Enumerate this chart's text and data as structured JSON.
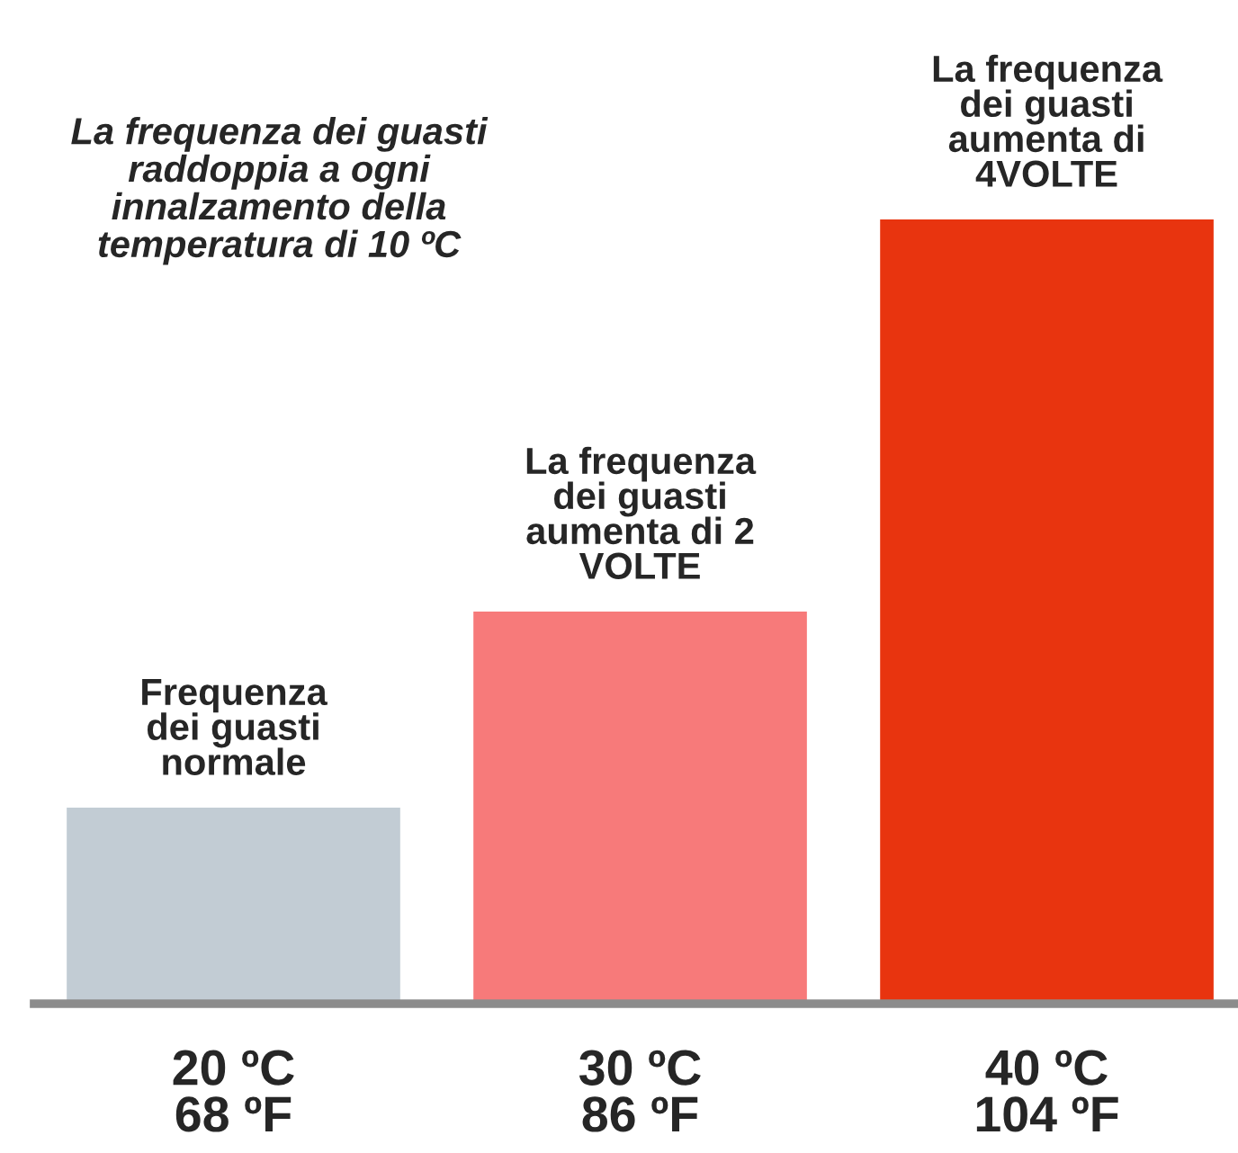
{
  "chart_data": {
    "type": "bar",
    "ylim": [
      0,
      4
    ],
    "tick_labels": "x",
    "title": "La frequenza dei guasti\nraddoppia a ogni\ninnalzamento della\ntemperatura di 10 ºC",
    "categories": [
      "20 ºC\n68 ºF",
      "30 ºC\n86 ºF",
      "40 ºC\n104 ºF"
    ],
    "values": [
      1,
      2,
      4
    ],
    "colors": [
      "#c2ccd4",
      "#f77a7a",
      "#e8340f"
    ],
    "value_labels": [
      "Frequenza\ndei guasti\nnormale",
      "La frequenza\ndei guasti\naumenta di 2\nVOLTE",
      "La frequenza\ndei guasti\naumenta di\n4VOLTE"
    ],
    "grid": false,
    "legend": false
  }
}
